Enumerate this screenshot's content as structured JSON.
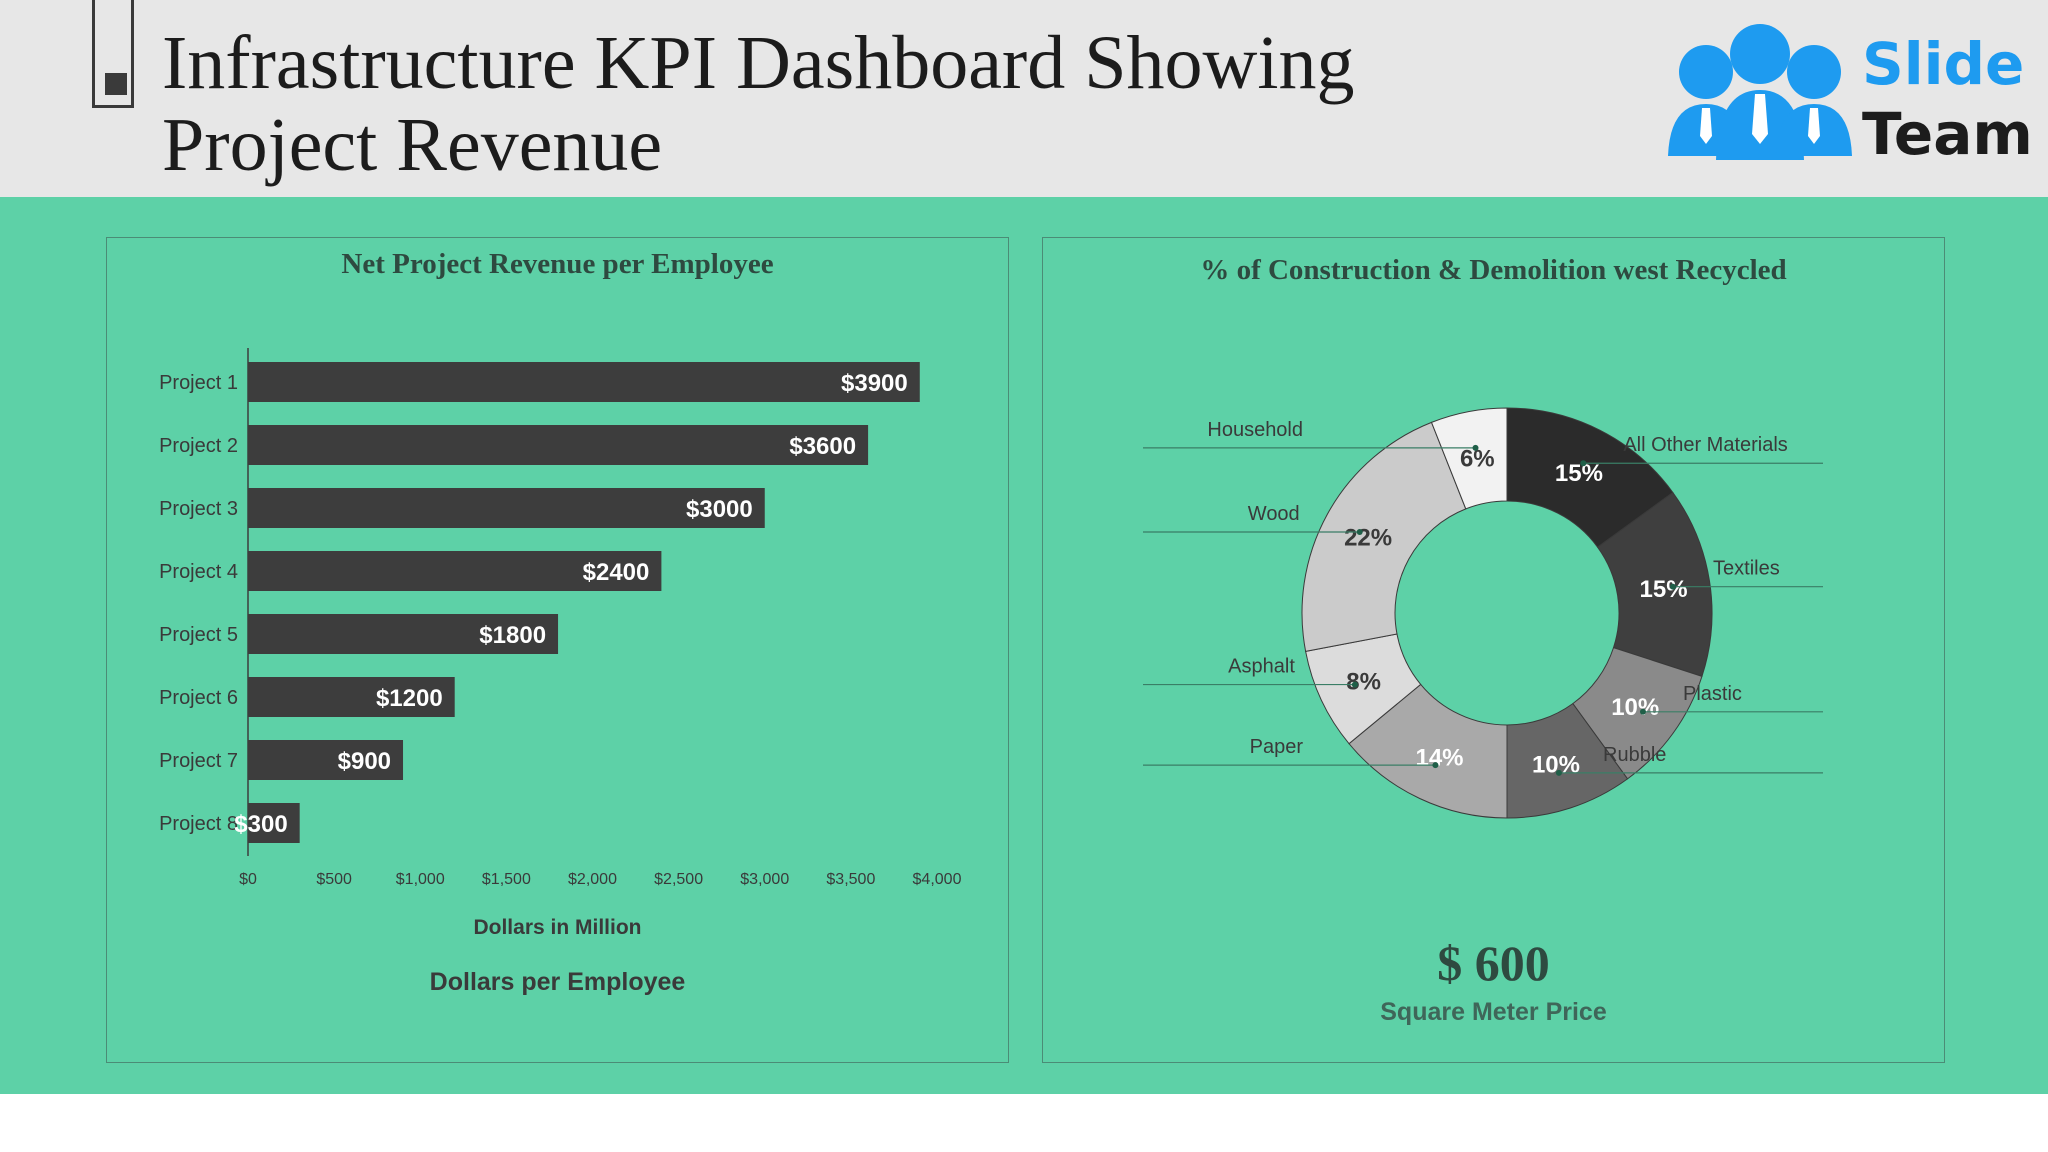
{
  "header": {
    "title_line1": "Infrastructure KPI Dashboard Showing",
    "title_line2": "Project Revenue",
    "logo_word1": "Slide",
    "logo_word2": "Team"
  },
  "colors": {
    "background": "#5dd1a7",
    "header_bg": "#e7e7e7",
    "bar": "#3d3d3d",
    "logo_blue": "#1e9bf0"
  },
  "bar_panel": {
    "title": "Net Project Revenue per Employee",
    "xlabel": "Dollars in Million",
    "footer": "Dollars per Employee"
  },
  "donut_panel": {
    "title": "% of Construction & Demolition west Recycled",
    "price_value": "$ 600",
    "price_label": "Square Meter Price"
  },
  "chart_data": [
    {
      "type": "bar",
      "orientation": "horizontal",
      "title": "Net Project Revenue per Employee",
      "xlabel": "Dollars in Million",
      "categories": [
        "Project 1",
        "Project 2",
        "Project 3",
        "Project 4",
        "Project 5",
        "Project 6",
        "Project 7",
        "Project 8"
      ],
      "values": [
        3900,
        3600,
        3000,
        2400,
        1800,
        1200,
        900,
        300
      ],
      "data_labels": [
        "$3900",
        "$3600",
        "$3000",
        "$2400",
        "$1800",
        "$1200",
        "$900",
        "$300"
      ],
      "xlim": [
        0,
        4000
      ],
      "xticks": [
        0,
        500,
        1000,
        1500,
        2000,
        2500,
        3000,
        3500,
        4000
      ],
      "xtick_labels": [
        "$0",
        "$500",
        "$1,000",
        "$1,500",
        "$2,000",
        "$2,500",
        "$3,000",
        "$3,500",
        "$4,000"
      ],
      "grid": false,
      "legend": "none",
      "color": "#3d3d3d"
    },
    {
      "type": "pie",
      "variant": "donut",
      "title": "% of Construction & Demolition west Recycled",
      "start": "top",
      "direction": "clockwise",
      "slices": [
        {
          "label": "All Other Materials",
          "value": 15,
          "text": "15%",
          "color": "#2b2b2b"
        },
        {
          "label": "Textiles",
          "value": 15,
          "text": "15%",
          "color": "#3f3f3f"
        },
        {
          "label": "Plastic",
          "value": 10,
          "text": "10%",
          "color": "#8a8a8a"
        },
        {
          "label": "Rubble",
          "value": 10,
          "text": "10%",
          "color": "#666666"
        },
        {
          "label": "Paper",
          "value": 14,
          "text": "14%",
          "color": "#a9a9a9"
        },
        {
          "label": "Asphalt",
          "value": 8,
          "text": "8%",
          "color": "#dcdcdc"
        },
        {
          "label": "Wood",
          "value": 22,
          "text": "22%",
          "color": "#cbcbcb"
        },
        {
          "label": "Household",
          "value": 6,
          "text": "6%",
          "color": "#f2f2f2"
        }
      ],
      "legend": "callout labels around the ring"
    }
  ]
}
